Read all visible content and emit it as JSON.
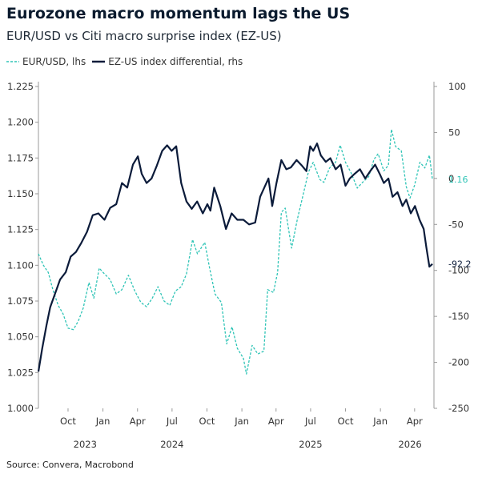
{
  "title": "Eurozone macro momentum lags the US",
  "subtitle": "EUR/USD vs Citi macro surprise index (EZ-US)",
  "source": "Source: Convera, Macrobond",
  "colors": {
    "eurusd": "#2ec4b6",
    "differential": "#0b1b3a",
    "axis": "#999999"
  },
  "legend": [
    {
      "label": "EUR/USD, lhs",
      "style": "dashed"
    },
    {
      "label": "EZ-US index differential, rhs",
      "style": "solid"
    }
  ],
  "chart_data": {
    "type": "line",
    "grid": false,
    "legend_position": "top-left",
    "x_range": [
      "2023-07-15",
      "2026-05-22"
    ],
    "x_ticks": [
      {
        "date": "2023-10-01",
        "label": "Oct"
      },
      {
        "date": "2024-01-01",
        "label": "Jan"
      },
      {
        "date": "2024-04-01",
        "label": "Apr"
      },
      {
        "date": "2024-07-01",
        "label": "Jul"
      },
      {
        "date": "2024-10-01",
        "label": "Oct"
      },
      {
        "date": "2025-01-01",
        "label": "Jan"
      },
      {
        "date": "2025-04-01",
        "label": "Apr"
      },
      {
        "date": "2025-07-01",
        "label": "Jul"
      },
      {
        "date": "2025-10-01",
        "label": "Oct"
      },
      {
        "date": "2026-01-01",
        "label": "Jan"
      },
      {
        "date": "2026-04-01",
        "label": "Apr"
      }
    ],
    "year_labels": [
      {
        "date": "2023-11-15",
        "label": "2023"
      },
      {
        "date": "2024-07-01",
        "label": "2024"
      },
      {
        "date": "2025-07-01",
        "label": "2025"
      },
      {
        "date": "2026-03-20",
        "label": "2026"
      }
    ],
    "y_left": {
      "label": "",
      "range": [
        1.0,
        1.225
      ],
      "ticks": [
        "1.000",
        "1.025",
        "1.050",
        "1.075",
        "1.100",
        "1.125",
        "1.150",
        "1.175",
        "1.200",
        "1.225"
      ]
    },
    "y_right": {
      "label": "",
      "range": [
        -250,
        100
      ],
      "ticks": [
        "100",
        "50",
        "0",
        "-50",
        "-100",
        "-150",
        "-200",
        "-250"
      ]
    },
    "series": [
      {
        "name": "EUR/USD, lhs",
        "axis": "left",
        "style": "dashed",
        "end_label": "1.16",
        "points": [
          [
            "2023-07-15",
            1.108
          ],
          [
            "2023-07-28",
            1.1
          ],
          [
            "2023-08-10",
            1.095
          ],
          [
            "2023-08-22",
            1.083
          ],
          [
            "2023-09-05",
            1.072
          ],
          [
            "2023-09-18",
            1.066
          ],
          [
            "2023-10-01",
            1.056
          ],
          [
            "2023-10-15",
            1.055
          ],
          [
            "2023-10-28",
            1.061
          ],
          [
            "2023-11-10",
            1.07
          ],
          [
            "2023-11-25",
            1.088
          ],
          [
            "2023-12-08",
            1.077
          ],
          [
            "2023-12-22",
            1.098
          ],
          [
            "2024-01-05",
            1.094
          ],
          [
            "2024-01-20",
            1.09
          ],
          [
            "2024-02-05",
            1.08
          ],
          [
            "2024-02-20",
            1.083
          ],
          [
            "2024-03-08",
            1.093
          ],
          [
            "2024-03-25",
            1.082
          ],
          [
            "2024-04-10",
            1.074
          ],
          [
            "2024-04-25",
            1.071
          ],
          [
            "2024-05-10",
            1.077
          ],
          [
            "2024-05-25",
            1.085
          ],
          [
            "2024-06-10",
            1.075
          ],
          [
            "2024-06-25",
            1.072
          ],
          [
            "2024-07-10",
            1.082
          ],
          [
            "2024-07-25",
            1.085
          ],
          [
            "2024-08-08",
            1.094
          ],
          [
            "2024-08-24",
            1.118
          ],
          [
            "2024-09-06",
            1.108
          ],
          [
            "2024-09-25",
            1.116
          ],
          [
            "2024-10-08",
            1.098
          ],
          [
            "2024-10-22",
            1.08
          ],
          [
            "2024-11-08",
            1.074
          ],
          [
            "2024-11-22",
            1.045
          ],
          [
            "2024-12-06",
            1.057
          ],
          [
            "2024-12-20",
            1.042
          ],
          [
            "2025-01-05",
            1.035
          ],
          [
            "2025-01-13",
            1.024
          ],
          [
            "2025-01-28",
            1.044
          ],
          [
            "2025-02-12",
            1.038
          ],
          [
            "2025-02-28",
            1.04
          ],
          [
            "2025-03-10",
            1.083
          ],
          [
            "2025-03-25",
            1.081
          ],
          [
            "2025-04-05",
            1.095
          ],
          [
            "2025-04-15",
            1.137
          ],
          [
            "2025-04-25",
            1.14
          ],
          [
            "2025-05-12",
            1.112
          ],
          [
            "2025-05-27",
            1.132
          ],
          [
            "2025-06-12",
            1.15
          ],
          [
            "2025-06-25",
            1.165
          ],
          [
            "2025-07-08",
            1.172
          ],
          [
            "2025-07-25",
            1.16
          ],
          [
            "2025-08-05",
            1.158
          ],
          [
            "2025-08-20",
            1.168
          ],
          [
            "2025-09-05",
            1.172
          ],
          [
            "2025-09-17",
            1.184
          ],
          [
            "2025-10-01",
            1.172
          ],
          [
            "2025-10-15",
            1.165
          ],
          [
            "2025-11-01",
            1.154
          ],
          [
            "2025-11-15",
            1.158
          ],
          [
            "2025-12-01",
            1.162
          ],
          [
            "2025-12-15",
            1.174
          ],
          [
            "2025-12-26",
            1.178
          ],
          [
            "2026-01-10",
            1.166
          ],
          [
            "2026-01-22",
            1.17
          ],
          [
            "2026-01-30",
            1.195
          ],
          [
            "2026-02-10",
            1.183
          ],
          [
            "2026-02-25",
            1.18
          ],
          [
            "2026-03-10",
            1.155
          ],
          [
            "2026-03-20",
            1.147
          ],
          [
            "2026-04-01",
            1.156
          ],
          [
            "2026-04-15",
            1.172
          ],
          [
            "2026-04-28",
            1.168
          ],
          [
            "2026-05-10",
            1.177
          ],
          [
            "2026-05-18",
            1.16
          ]
        ]
      },
      {
        "name": "EZ-US index differential, rhs",
        "axis": "right",
        "style": "solid",
        "end_label": "-92.2",
        "points": [
          [
            "2023-07-15",
            -210
          ],
          [
            "2023-07-25",
            -185
          ],
          [
            "2023-08-05",
            -160
          ],
          [
            "2023-08-15",
            -140
          ],
          [
            "2023-08-28",
            -125
          ],
          [
            "2023-09-10",
            -110
          ],
          [
            "2023-09-25",
            -102
          ],
          [
            "2023-10-08",
            -85
          ],
          [
            "2023-10-22",
            -80
          ],
          [
            "2023-11-05",
            -70
          ],
          [
            "2023-11-20",
            -58
          ],
          [
            "2023-12-05",
            -40
          ],
          [
            "2023-12-20",
            -38
          ],
          [
            "2024-01-05",
            -45
          ],
          [
            "2024-01-20",
            -32
          ],
          [
            "2024-02-05",
            -28
          ],
          [
            "2024-02-20",
            -5
          ],
          [
            "2024-03-05",
            -10
          ],
          [
            "2024-03-20",
            15
          ],
          [
            "2024-04-02",
            24
          ],
          [
            "2024-04-12",
            5
          ],
          [
            "2024-04-25",
            -5
          ],
          [
            "2024-05-08",
            0
          ],
          [
            "2024-05-22",
            14
          ],
          [
            "2024-06-05",
            30
          ],
          [
            "2024-06-18",
            36
          ],
          [
            "2024-06-30",
            30
          ],
          [
            "2024-07-12",
            35
          ],
          [
            "2024-07-25",
            -5
          ],
          [
            "2024-08-08",
            -25
          ],
          [
            "2024-08-22",
            -33
          ],
          [
            "2024-09-05",
            -25
          ],
          [
            "2024-09-20",
            -38
          ],
          [
            "2024-10-02",
            -28
          ],
          [
            "2024-10-10",
            -35
          ],
          [
            "2024-10-20",
            -10
          ],
          [
            "2024-11-05",
            -30
          ],
          [
            "2024-11-20",
            -55
          ],
          [
            "2024-12-05",
            -38
          ],
          [
            "2024-12-20",
            -45
          ],
          [
            "2025-01-05",
            -45
          ],
          [
            "2025-01-20",
            -50
          ],
          [
            "2025-02-05",
            -48
          ],
          [
            "2025-02-18",
            -20
          ],
          [
            "2025-03-01",
            -10
          ],
          [
            "2025-03-12",
            0
          ],
          [
            "2025-03-22",
            -30
          ],
          [
            "2025-04-02",
            -5
          ],
          [
            "2025-04-15",
            20
          ],
          [
            "2025-04-28",
            10
          ],
          [
            "2025-05-10",
            12
          ],
          [
            "2025-05-25",
            20
          ],
          [
            "2025-06-08",
            14
          ],
          [
            "2025-06-20",
            8
          ],
          [
            "2025-06-30",
            35
          ],
          [
            "2025-07-08",
            30
          ],
          [
            "2025-07-18",
            38
          ],
          [
            "2025-07-28",
            25
          ],
          [
            "2025-08-10",
            18
          ],
          [
            "2025-08-22",
            22
          ],
          [
            "2025-09-05",
            10
          ],
          [
            "2025-09-18",
            15
          ],
          [
            "2025-10-01",
            -8
          ],
          [
            "2025-10-12",
            0
          ],
          [
            "2025-10-25",
            5
          ],
          [
            "2025-11-08",
            10
          ],
          [
            "2025-11-22",
            0
          ],
          [
            "2025-12-05",
            8
          ],
          [
            "2025-12-18",
            15
          ],
          [
            "2025-12-30",
            5
          ],
          [
            "2026-01-10",
            -5
          ],
          [
            "2026-01-22",
            0
          ],
          [
            "2026-02-02",
            -20
          ],
          [
            "2026-02-15",
            -15
          ],
          [
            "2026-02-28",
            -30
          ],
          [
            "2026-03-10",
            -23
          ],
          [
            "2026-03-22",
            -38
          ],
          [
            "2026-04-02",
            -30
          ],
          [
            "2026-04-14",
            -45
          ],
          [
            "2026-04-25",
            -55
          ],
          [
            "2026-05-02",
            -75
          ],
          [
            "2026-05-10",
            -96
          ],
          [
            "2026-05-18",
            -93
          ]
        ]
      }
    ]
  }
}
